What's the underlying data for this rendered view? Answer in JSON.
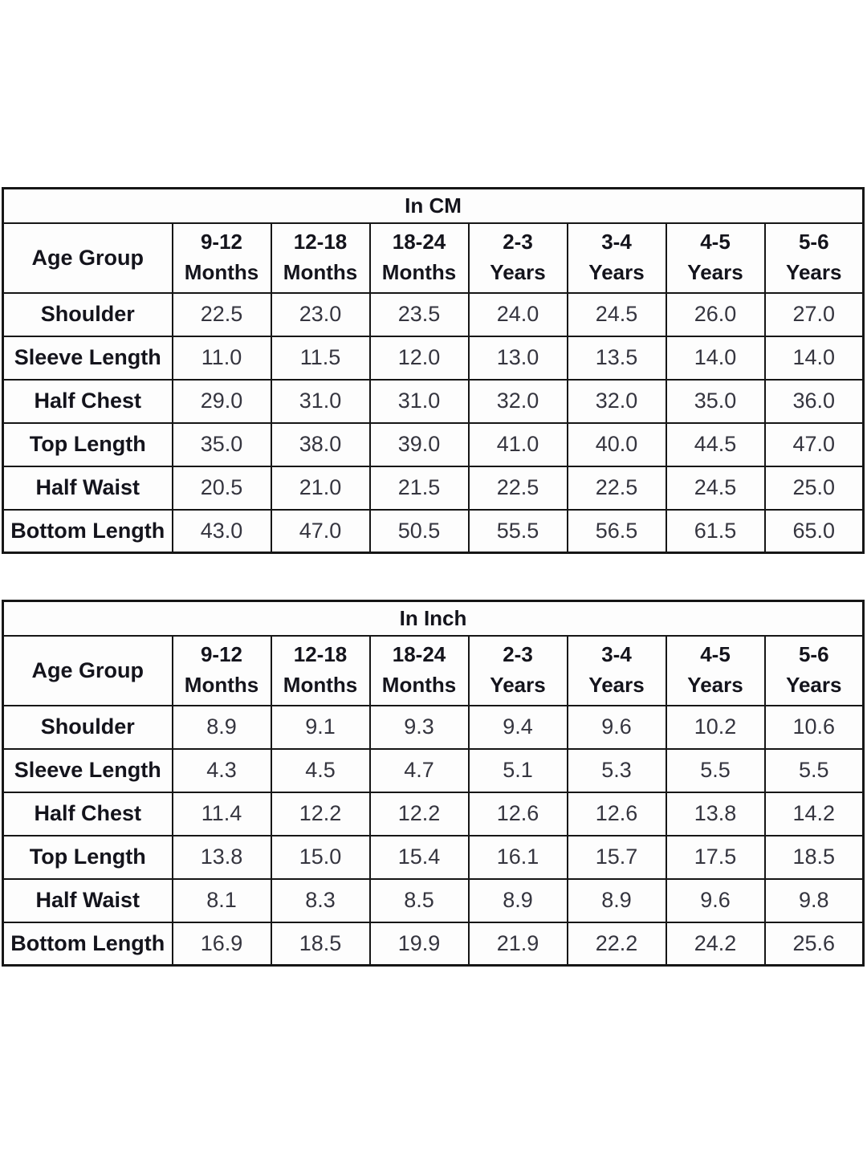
{
  "colors": {
    "background": "#ffffff",
    "table_background": "#fdfdfd",
    "border": "#161616",
    "header_text": "#14141c",
    "value_text": "#35353f"
  },
  "chart_data": [
    {
      "type": "table",
      "title": "In CM",
      "corner_label": "Age Group",
      "column_headers": [
        [
          "9-12",
          "Months"
        ],
        [
          "12-18",
          "Months"
        ],
        [
          "18-24",
          "Months"
        ],
        [
          "2-3",
          "Years"
        ],
        [
          "3-4",
          "Years"
        ],
        [
          "4-5",
          "Years"
        ],
        [
          "5-6",
          "Years"
        ]
      ],
      "rows": [
        {
          "label": "Shoulder",
          "values": [
            "22.5",
            "23.0",
            "23.5",
            "24.0",
            "24.5",
            "26.0",
            "27.0"
          ]
        },
        {
          "label": "Sleeve Length",
          "values": [
            "11.0",
            "11.5",
            "12.0",
            "13.0",
            "13.5",
            "14.0",
            "14.0"
          ]
        },
        {
          "label": "Half Chest",
          "values": [
            "29.0",
            "31.0",
            "31.0",
            "32.0",
            "32.0",
            "35.0",
            "36.0"
          ]
        },
        {
          "label": "Top Length",
          "values": [
            "35.0",
            "38.0",
            "39.0",
            "41.0",
            "40.0",
            "44.5",
            "47.0"
          ]
        },
        {
          "label": "Half Waist",
          "values": [
            "20.5",
            "21.0",
            "21.5",
            "22.5",
            "22.5",
            "24.5",
            "25.0"
          ]
        },
        {
          "label": "Bottom Length",
          "values": [
            "43.0",
            "47.0",
            "50.5",
            "55.5",
            "56.5",
            "61.5",
            "65.0"
          ]
        }
      ]
    },
    {
      "type": "table",
      "title": "In Inch",
      "corner_label": "Age Group",
      "column_headers": [
        [
          "9-12",
          "Months"
        ],
        [
          "12-18",
          "Months"
        ],
        [
          "18-24",
          "Months"
        ],
        [
          "2-3",
          "Years"
        ],
        [
          "3-4",
          "Years"
        ],
        [
          "4-5",
          "Years"
        ],
        [
          "5-6",
          "Years"
        ]
      ],
      "rows": [
        {
          "label": "Shoulder",
          "values": [
            "8.9",
            "9.1",
            "9.3",
            "9.4",
            "9.6",
            "10.2",
            "10.6"
          ]
        },
        {
          "label": "Sleeve Length",
          "values": [
            "4.3",
            "4.5",
            "4.7",
            "5.1",
            "5.3",
            "5.5",
            "5.5"
          ]
        },
        {
          "label": "Half Chest",
          "values": [
            "11.4",
            "12.2",
            "12.2",
            "12.6",
            "12.6",
            "13.8",
            "14.2"
          ]
        },
        {
          "label": "Top Length",
          "values": [
            "13.8",
            "15.0",
            "15.4",
            "16.1",
            "15.7",
            "17.5",
            "18.5"
          ]
        },
        {
          "label": "Half Waist",
          "values": [
            "8.1",
            "8.3",
            "8.5",
            "8.9",
            "8.9",
            "9.6",
            "9.8"
          ]
        },
        {
          "label": "Bottom Length",
          "values": [
            "16.9",
            "18.5",
            "19.9",
            "21.9",
            "22.2",
            "24.2",
            "25.6"
          ]
        }
      ]
    }
  ]
}
